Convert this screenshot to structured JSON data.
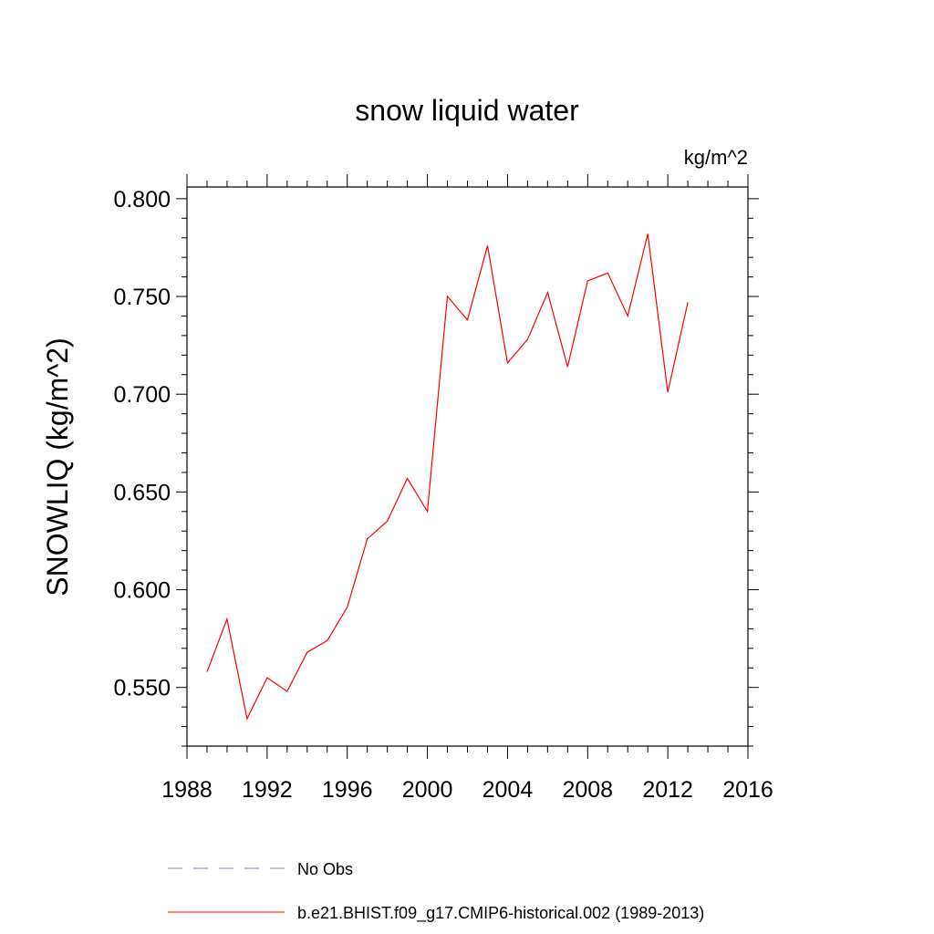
{
  "chart_data": {
    "type": "line",
    "title": "snow liquid water",
    "units_label": "kg/m^2",
    "ylabel": "SNOWLIQ  (kg/m^2)",
    "xlabel": "",
    "xlim": [
      1988,
      2016
    ],
    "ylim": [
      0.52,
      0.806
    ],
    "x_ticks": [
      1988,
      1992,
      1996,
      2000,
      2004,
      2008,
      2012,
      2016
    ],
    "y_ticks": [
      0.55,
      0.6,
      0.65,
      0.7,
      0.75,
      0.8
    ],
    "y_tick_labels": [
      "0.550",
      "0.600",
      "0.650",
      "0.700",
      "0.750",
      "0.800"
    ],
    "grid": false,
    "legend_position": "bottom",
    "series": [
      {
        "name": "b.e21.BHIST.f09_g17.CMIP6-historical.002 (1989-2013)",
        "color": "#ff0000",
        "style": "solid",
        "x": [
          1989,
          1990,
          1991,
          1992,
          1993,
          1994,
          1995,
          1996,
          1997,
          1998,
          1999,
          2000,
          2001,
          2002,
          2003,
          2004,
          2005,
          2006,
          2007,
          2008,
          2009,
          2010,
          2011,
          2012,
          2013
        ],
        "y": [
          0.558,
          0.585,
          0.534,
          0.555,
          0.548,
          0.568,
          0.574,
          0.591,
          0.626,
          0.635,
          0.657,
          0.64,
          0.75,
          0.738,
          0.776,
          0.716,
          0.728,
          0.752,
          0.714,
          0.758,
          0.762,
          0.74,
          0.782,
          0.701,
          0.747
        ]
      },
      {
        "name": "No Obs",
        "color": "#8a80c0",
        "style": "dashed",
        "x": [],
        "y": []
      }
    ]
  }
}
